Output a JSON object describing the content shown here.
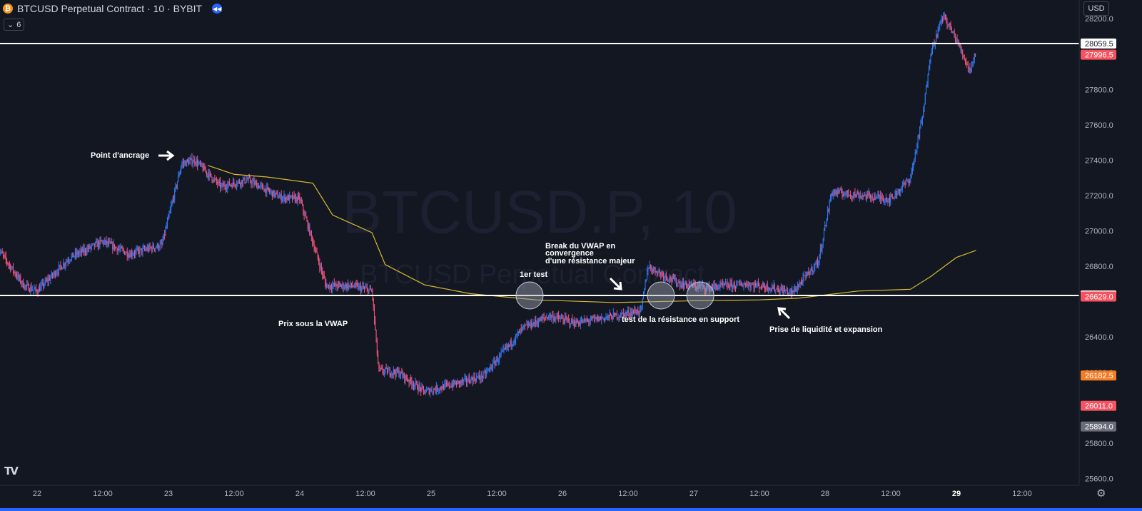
{
  "header": {
    "coin_icon": "bitcoin-icon",
    "symbol_title": "BTCUSD Perpetual Contract · 10 · BYBIT",
    "replay_icon": "replay-icon"
  },
  "indicator_toggle": {
    "icon": "chevron-down-icon",
    "count": "6"
  },
  "currency_selector": "USD",
  "watermark": {
    "main": "BTCUSD.P, 10",
    "sub": "BTCUSD Perpetual Contract"
  },
  "colors": {
    "background": "#131722",
    "candle_up": "#3179f5",
    "candle_down": "#f2547b",
    "vwap": "#d9b92f",
    "level_line": "#ffffff",
    "annotation_circle": "#8a8f9c"
  },
  "chart_data": {
    "type": "candlestick",
    "symbol": "BTCUSD.P",
    "interval": "10",
    "exchange": "BYBIT",
    "x_ticks": [
      "22",
      "12:00",
      "23",
      "12:00",
      "24",
      "12:00",
      "25",
      "12:00",
      "26",
      "12:00",
      "27",
      "12:00",
      "28",
      "12:00",
      "29",
      "12:00"
    ],
    "y_ticks": [
      "28200.0",
      "27800.0",
      "27600.0",
      "27400.0",
      "27200.0",
      "27000.0",
      "26800.0",
      "26400.0",
      "26200.0",
      "25800.0",
      "25600.0"
    ],
    "ylim": [
      25520,
      28290
    ],
    "price_path": [
      {
        "day": 21.7,
        "price": 26900
      },
      {
        "day": 21.9,
        "price": 26690
      },
      {
        "day": 22.0,
        "price": 26660
      },
      {
        "day": 22.25,
        "price": 26850
      },
      {
        "day": 22.5,
        "price": 26940
      },
      {
        "day": 22.7,
        "price": 26870
      },
      {
        "day": 22.95,
        "price": 26920
      },
      {
        "day": 23.1,
        "price": 27380
      },
      {
        "day": 23.2,
        "price": 27400
      },
      {
        "day": 23.4,
        "price": 27250
      },
      {
        "day": 23.6,
        "price": 27290
      },
      {
        "day": 23.85,
        "price": 27190
      },
      {
        "day": 24.0,
        "price": 27180
      },
      {
        "day": 24.2,
        "price": 26690
      },
      {
        "day": 24.4,
        "price": 26690
      },
      {
        "day": 24.55,
        "price": 26660
      },
      {
        "day": 24.6,
        "price": 26210
      },
      {
        "day": 24.75,
        "price": 26200
      },
      {
        "day": 24.95,
        "price": 26090
      },
      {
        "day": 25.1,
        "price": 26120
      },
      {
        "day": 25.4,
        "price": 26180
      },
      {
        "day": 25.7,
        "price": 26450
      },
      {
        "day": 25.9,
        "price": 26520
      },
      {
        "day": 26.1,
        "price": 26480
      },
      {
        "day": 26.4,
        "price": 26520
      },
      {
        "day": 26.6,
        "price": 26550
      },
      {
        "day": 26.65,
        "price": 26800
      },
      {
        "day": 26.9,
        "price": 26700
      },
      {
        "day": 27.1,
        "price": 26680
      },
      {
        "day": 27.4,
        "price": 26700
      },
      {
        "day": 27.6,
        "price": 26680
      },
      {
        "day": 27.75,
        "price": 26650
      },
      {
        "day": 27.95,
        "price": 26830
      },
      {
        "day": 28.05,
        "price": 27220
      },
      {
        "day": 28.3,
        "price": 27200
      },
      {
        "day": 28.5,
        "price": 27180
      },
      {
        "day": 28.65,
        "price": 27300
      },
      {
        "day": 28.75,
        "price": 27680
      },
      {
        "day": 28.8,
        "price": 28000
      },
      {
        "day": 28.9,
        "price": 28220
      },
      {
        "day": 29.0,
        "price": 28080
      },
      {
        "day": 29.1,
        "price": 27910
      },
      {
        "day": 29.15,
        "price": 28010
      }
    ],
    "vwap": [
      {
        "day": 23.3,
        "price": 27370
      },
      {
        "day": 23.5,
        "price": 27320
      },
      {
        "day": 23.75,
        "price": 27305
      },
      {
        "day": 24.1,
        "price": 27270
      },
      {
        "day": 24.25,
        "price": 27090
      },
      {
        "day": 24.55,
        "price": 26990
      },
      {
        "day": 24.65,
        "price": 26810
      },
      {
        "day": 24.95,
        "price": 26695
      },
      {
        "day": 25.3,
        "price": 26645
      },
      {
        "day": 25.8,
        "price": 26610
      },
      {
        "day": 26.4,
        "price": 26595
      },
      {
        "day": 27.0,
        "price": 26605
      },
      {
        "day": 27.5,
        "price": 26610
      },
      {
        "day": 27.8,
        "price": 26620
      },
      {
        "day": 28.25,
        "price": 26660
      },
      {
        "day": 28.65,
        "price": 26670
      },
      {
        "day": 28.8,
        "price": 26740
      },
      {
        "day": 29.0,
        "price": 26850
      },
      {
        "day": 29.15,
        "price": 26890
      }
    ],
    "horizontal_levels": [
      {
        "price": 28059.5,
        "label": "28059.5"
      },
      {
        "price": 26635.0,
        "label": "26635.0"
      }
    ],
    "price_tags": [
      {
        "price": 27996.5,
        "label": "27996.5",
        "color": "#f7525f"
      },
      {
        "price": 26629.0,
        "label": "26629.0",
        "color": "#f7525f"
      },
      {
        "price": 26182.5,
        "label": "26182.5",
        "color": "#f57c25"
      },
      {
        "price": 26011.0,
        "label": "26011.0",
        "color": "#f7525f"
      },
      {
        "price": 25894.0,
        "label": "25894.0",
        "color": "#6a6d78"
      }
    ],
    "annotations": [
      {
        "text": "Point d'ancrage",
        "arrow": "right"
      },
      {
        "text": "Prix sous la VWAP"
      },
      {
        "text": "1er test"
      },
      {
        "text": "Break du VWAP en convergence d'une résistance majeur",
        "arrow": "down-right"
      },
      {
        "text": "test de la résistance en support"
      },
      {
        "text": "Prise de liquidité et expansion",
        "arrow": "up-left"
      }
    ],
    "circles": [
      {
        "day": 25.75,
        "price": 26635
      },
      {
        "day": 26.75,
        "price": 26635
      },
      {
        "day": 27.05,
        "price": 26635
      }
    ]
  }
}
